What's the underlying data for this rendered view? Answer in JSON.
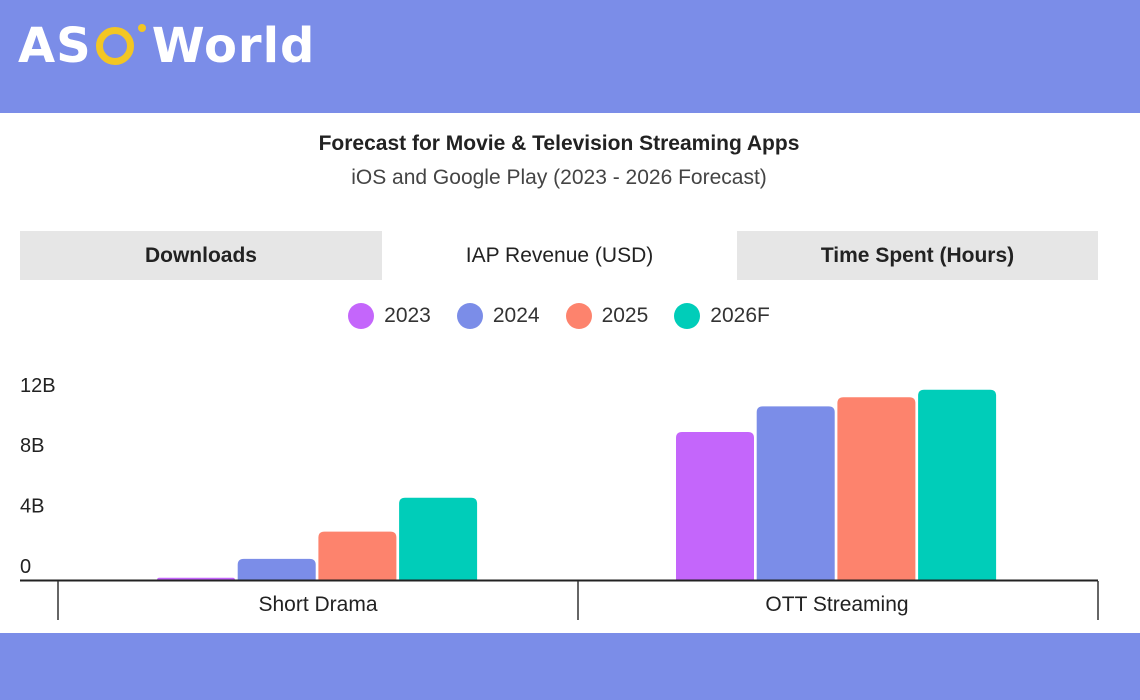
{
  "brand": {
    "logo_text": "ASO World",
    "header_color": "#7b8de8"
  },
  "tabs": [
    {
      "label": "Downloads",
      "active": false
    },
    {
      "label": "IAP Revenue (USD)",
      "active": true
    },
    {
      "label": "Time Spent (Hours)",
      "active": false
    }
  ],
  "chart_data": {
    "type": "bar",
    "title": "Forecast for Movie & Television Streaming Apps",
    "subtitle": "iOS and Google Play (2023 - 2026 Forecast)",
    "categories": [
      "Short Drama",
      "OTT Streaming"
    ],
    "series": [
      {
        "name": "2023",
        "color": "#c466fb",
        "values": [
          0.15,
          9.8
        ]
      },
      {
        "name": "2024",
        "color": "#7b8de8",
        "values": [
          1.4,
          11.5
        ]
      },
      {
        "name": "2025",
        "color": "#fd836d",
        "values": [
          3.2,
          12.1
        ]
      },
      {
        "name": "2026F",
        "color": "#00cdb9",
        "values": [
          5.45,
          12.6
        ]
      }
    ],
    "yticks": [
      {
        "v": 0,
        "label": "0"
      },
      {
        "v": 4,
        "label": "4B"
      },
      {
        "v": 8,
        "label": "8B"
      },
      {
        "v": 12,
        "label": "12B"
      }
    ],
    "ylim": [
      0,
      12
    ],
    "unit": "B USD",
    "legend": "top",
    "grid": false
  }
}
